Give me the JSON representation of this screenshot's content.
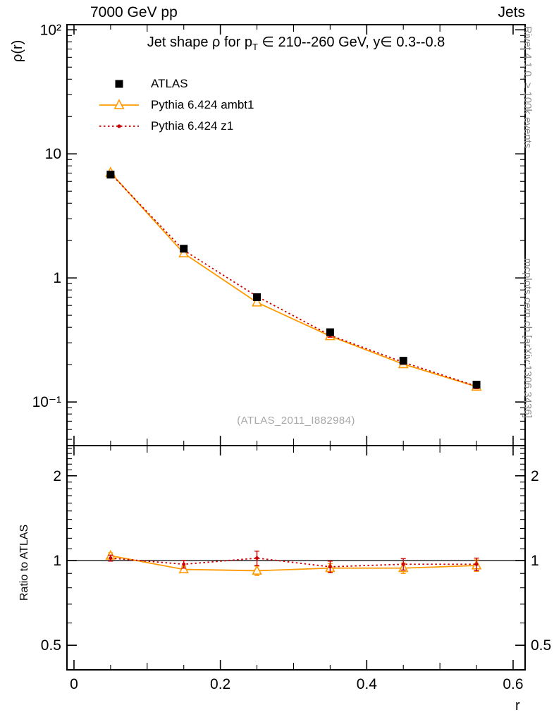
{
  "header": {
    "left_label": "7000 GeV pp",
    "right_label": "Jets"
  },
  "titles": {
    "main_prefix": "Jet shape ρ for p",
    "main_sub": "T",
    "main_suffix": " ∈ 210--260 GeV, y∈ 0.3--0.8",
    "ylabel": "ρ(r)",
    "xlabel": "r",
    "ratio_ylabel": "Ratio to ATLAS",
    "watermark": "(ATLAS_2011_I882984)",
    "side_top": "Rivet 4.1.0, ≥ 100k events",
    "side_bottom": "mcplots.cern.ch [arXiv:1306.3436]"
  },
  "legend": {
    "items": [
      {
        "label": "ATLAS",
        "marker": "square",
        "color": "#000000",
        "line": "none"
      },
      {
        "label": "Pythia 6.424 ambt1",
        "marker": "triangle-open",
        "color": "#ff9900",
        "line": "solid"
      },
      {
        "label": "Pythia 6.424 z1",
        "marker": "dot",
        "color": "#cc0000",
        "line": "dotted"
      }
    ]
  },
  "chart_data": {
    "type": "line",
    "title": "Jet shape ρ for pT ∈ 210--260 GeV, y∈ 0.3--0.8",
    "xlabel": "r",
    "ylabel": "ρ(r)",
    "ratio_ylabel": "Ratio to ATLAS",
    "x": [
      0.05,
      0.15,
      0.25,
      0.35,
      0.45,
      0.55
    ],
    "series": [
      {
        "name": "ATLAS",
        "color": "#000000",
        "marker": "square",
        "line": "none",
        "values": [
          6.8,
          1.72,
          0.7,
          0.365,
          0.215,
          0.138
        ],
        "errors": [
          0.2,
          0.05,
          0.02,
          0.012,
          0.008,
          0.006
        ]
      },
      {
        "name": "Pythia 6.424 ambt1",
        "color": "#ff9900",
        "marker": "triangle-open",
        "line": "solid",
        "values": [
          7.05,
          1.58,
          0.635,
          0.34,
          0.202,
          0.133
        ],
        "errors": [
          0.18,
          0.04,
          0.018,
          0.01,
          0.007,
          0.005
        ]
      },
      {
        "name": "Pythia 6.424 z1",
        "color": "#cc0000",
        "marker": "dot",
        "line": "dotted",
        "values": [
          6.95,
          1.67,
          0.71,
          0.345,
          0.209,
          0.134
        ],
        "errors": [
          0.18,
          0.04,
          0.02,
          0.012,
          0.008,
          0.006
        ]
      }
    ],
    "ratio": {
      "reference": 1,
      "series": [
        {
          "name": "Pythia 6.424 ambt1",
          "color": "#ff9900",
          "marker": "triangle-open",
          "line": "solid",
          "values": [
            1.04,
            0.93,
            0.92,
            0.94,
            0.94,
            0.96
          ],
          "errors": [
            0.025,
            0.025,
            0.035,
            0.035,
            0.04,
            0.045
          ]
        },
        {
          "name": "Pythia 6.424 z1",
          "color": "#cc0000",
          "marker": "dot",
          "line": "dotted",
          "values": [
            1.02,
            0.97,
            1.02,
            0.95,
            0.97,
            0.97
          ],
          "errors": [
            0.025,
            0.03,
            0.06,
            0.045,
            0.045,
            0.05
          ]
        }
      ]
    },
    "axes": {
      "x": {
        "min": -0.0096,
        "max": 0.6164,
        "major_ticks": [
          0,
          0.2,
          0.4,
          0.6
        ],
        "labels": [
          "0",
          "0.2",
          "0.4",
          "0.6"
        ],
        "minor_step": 0.05
      },
      "y_main": {
        "scale": "log",
        "min": 0.0445,
        "max": 110,
        "major_ticks": [
          100,
          10,
          1,
          0.1
        ],
        "labels": [
          "10²",
          "10",
          "1",
          "10⁻¹"
        ]
      },
      "y_ratio": {
        "scale": "log",
        "min": 0.409,
        "max": 2.56,
        "major_ticks": [
          2,
          1,
          0.5
        ],
        "labels": [
          "2",
          "1",
          "0.5"
        ]
      }
    }
  }
}
